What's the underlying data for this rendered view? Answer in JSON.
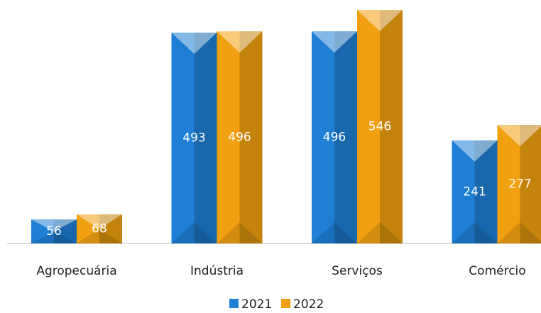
{
  "chart_data": {
    "type": "bar",
    "categories": [
      "Agropecuária",
      "Indústria",
      "Serviços",
      "Comércio"
    ],
    "series": [
      {
        "name": "2021",
        "color": "#1f7fd4",
        "values": [
          56,
          493,
          496,
          241
        ]
      },
      {
        "name": "2022",
        "color": "#f0a010",
        "values": [
          68,
          496,
          546,
          277
        ]
      }
    ]
  }
}
